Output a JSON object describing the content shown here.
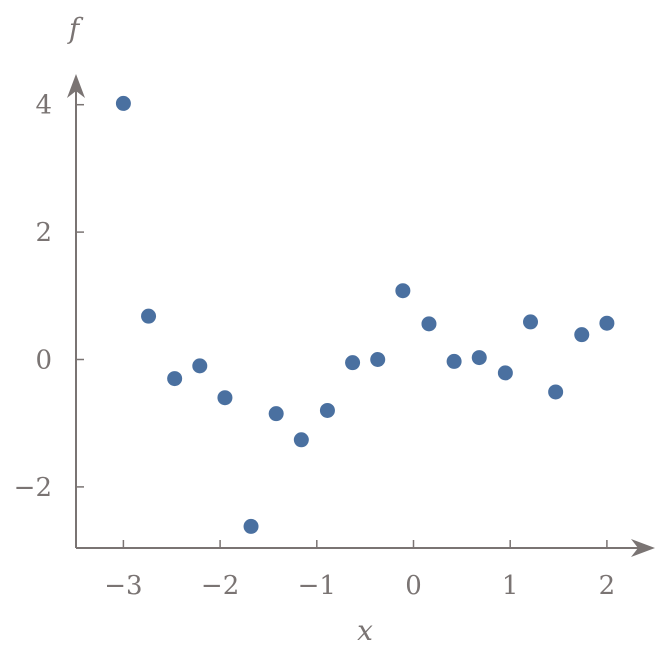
{
  "chart_data": {
    "type": "scatter",
    "xlabel": "x",
    "ylabel": "f",
    "xlim": [
      -3.5,
      2.5
    ],
    "ylim": [
      -3,
      4.2
    ],
    "xticks": [
      -3,
      -2,
      -1,
      0,
      1,
      2
    ],
    "xtick_labels": [
      "−3",
      "−2",
      "−1",
      "0",
      "1",
      "2"
    ],
    "yticks": [
      -2,
      0,
      2,
      4
    ],
    "ytick_labels": [
      "−2",
      "0",
      "2",
      "4"
    ],
    "grid": false,
    "point_color": "#4a70a0",
    "axis_color": "#7a7473",
    "series": [
      {
        "x": [
          -3.0,
          -2.74,
          -2.47,
          -2.21,
          -1.95,
          -1.68,
          -1.42,
          -1.16,
          -0.89,
          -0.63,
          -0.37,
          -0.11,
          0.16,
          0.42,
          0.68,
          0.95,
          1.21,
          1.47,
          1.74,
          2.0
        ],
        "y": [
          4.02,
          0.68,
          -0.3,
          -0.1,
          -0.6,
          -2.62,
          -0.85,
          -1.26,
          -0.8,
          -0.05,
          0.0,
          1.08,
          0.56,
          -0.03,
          0.03,
          -0.21,
          0.59,
          -0.51,
          0.39,
          0.57
        ]
      }
    ]
  }
}
